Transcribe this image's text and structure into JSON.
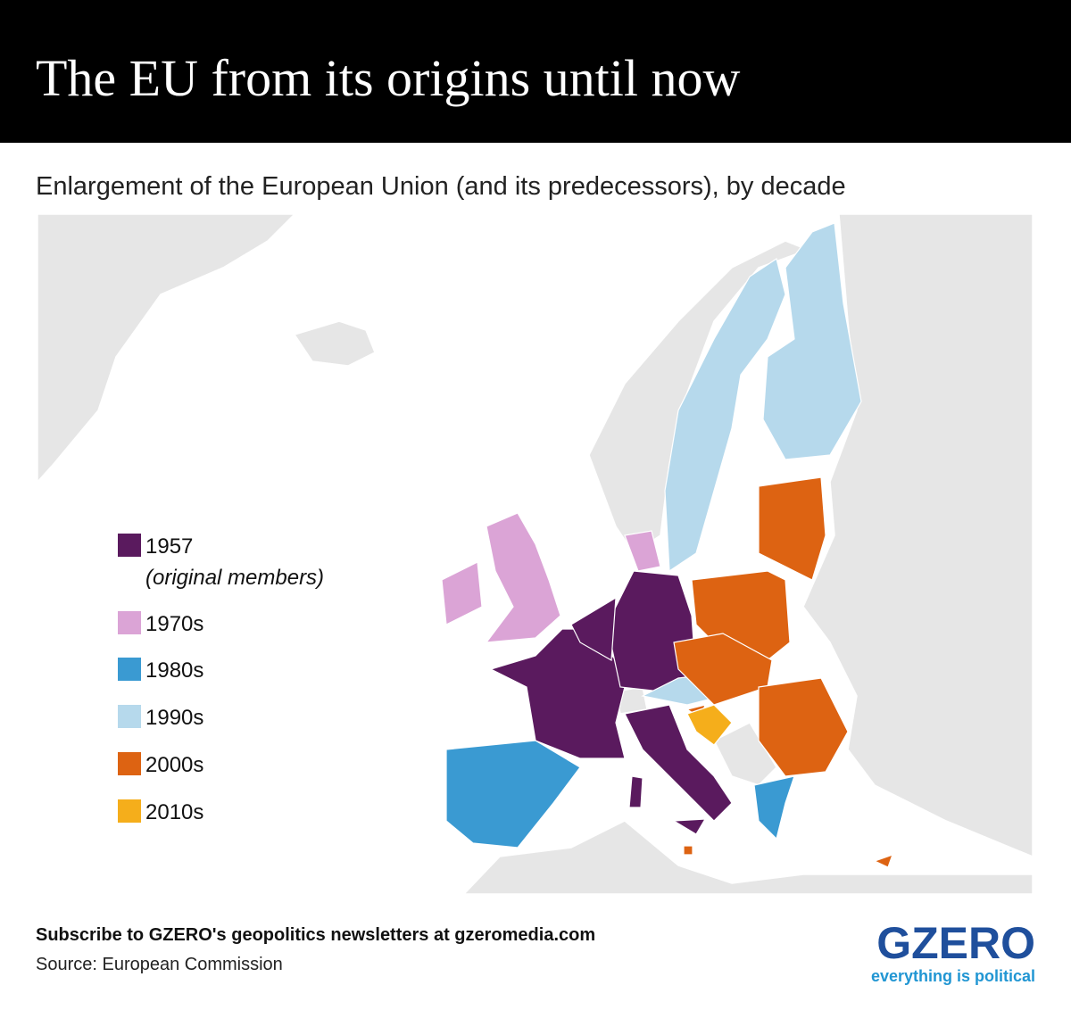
{
  "header": {
    "title": "The EU from its origins until now"
  },
  "subtitle": "Enlargement of the European Union (and its predecessors), by decade",
  "legend": [
    {
      "label": "1957",
      "note": "(original members)",
      "color": "#5a1a5e"
    },
    {
      "label": "1970s",
      "color": "#dba4d6"
    },
    {
      "label": "1980s",
      "color": "#3a9ad2"
    },
    {
      "label": "1990s",
      "color": "#b6d9ec"
    },
    {
      "label": "2000s",
      "color": "#dd6312"
    },
    {
      "label": "2010s",
      "color": "#f5ae1b"
    }
  ],
  "footer": {
    "cta": "Subscribe to GZERO's geopolitics newsletters at gzeromedia.com",
    "source": "Source: European Commission"
  },
  "logo": {
    "name": "GZERO",
    "tagline": "everything is political"
  }
}
